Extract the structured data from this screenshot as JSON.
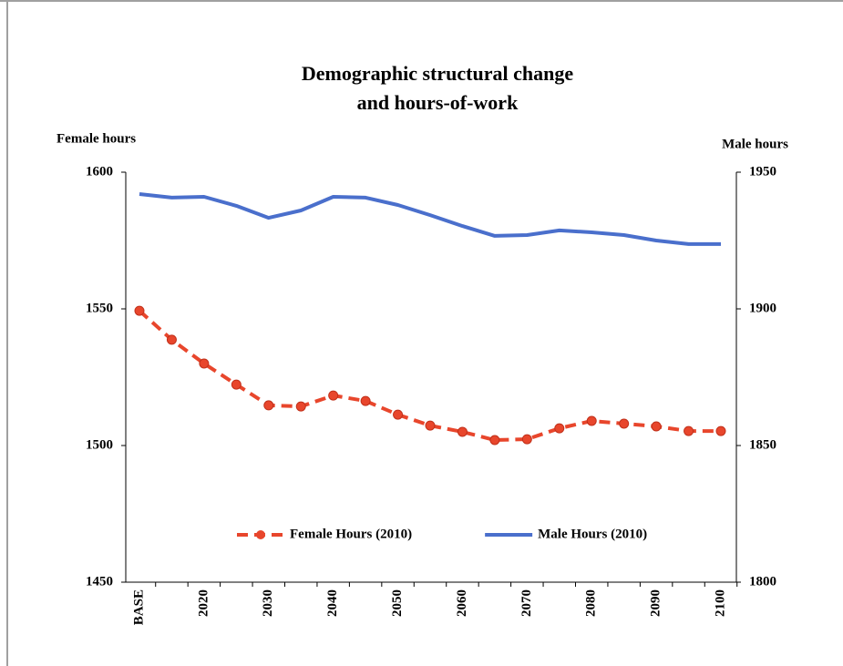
{
  "chart_data": {
    "type": "line",
    "title": "Demographic structural change",
    "subtitle": "and hours-of-work",
    "y_label": "Female hours",
    "y2_label": "Male hours",
    "categories": [
      "BASE",
      null,
      "2020",
      null,
      "2030",
      null,
      "2040",
      null,
      "2050",
      null,
      "2060",
      null,
      "2070",
      null,
      "2080",
      null,
      "2090",
      null,
      "2100"
    ],
    "series": [
      {
        "name": "Female Hours (2010)",
        "color": "#e8462c",
        "dashed": true,
        "markers": true,
        "values": [
          1549.3,
          1538.7,
          1530,
          1522.3,
          1514.7,
          1514.3,
          1518.3,
          1516.3,
          1511.3,
          1507.3,
          1505,
          1502,
          1502.3,
          1506.3,
          1509,
          1508,
          1507,
          1505.3,
          1505.3
        ]
      },
      {
        "name": "Male Hours (2010)",
        "color": "#4a6fcc",
        "axis": "y2",
        "dashed": false,
        "markers": false,
        "values": [
          1942,
          1940.7,
          1941,
          1937.7,
          1933.3,
          1936,
          1941,
          1940.7,
          1938,
          1934.3,
          1930.3,
          1926.7,
          1927,
          1928.7,
          1928,
          1927,
          1925,
          1923.7,
          1923.7
        ]
      }
    ],
    "ylim": [
      1450,
      1600
    ],
    "yticks": [
      1450,
      1500,
      1550,
      1600
    ],
    "y2lim": [
      1800,
      1950
    ],
    "y2ticks": [
      1800,
      1850,
      1900,
      1950
    ],
    "grid": false,
    "legend": "center"
  }
}
